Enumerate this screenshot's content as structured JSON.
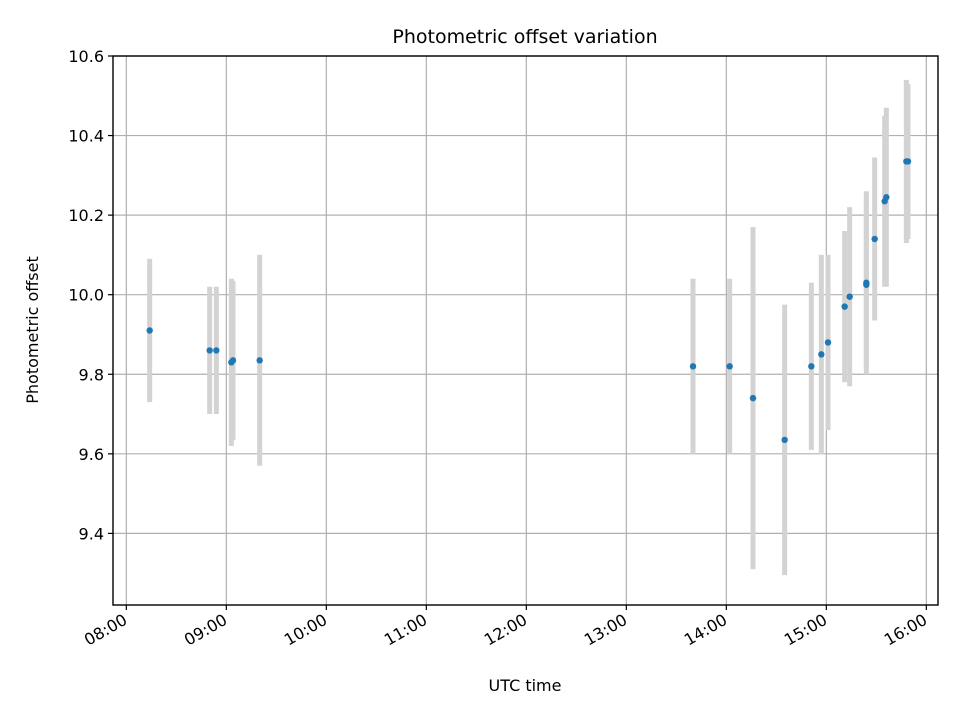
{
  "chart_data": {
    "type": "scatter",
    "title": "Photometric offset variation",
    "xlabel": "UTC time",
    "ylabel": "Photometric offset",
    "grid": true,
    "x_tick_labels": [
      "08:00",
      "09:00",
      "10:00",
      "11:00",
      "12:00",
      "13:00",
      "14:00",
      "15:00",
      "16:00"
    ],
    "y_ticks": [
      9.4,
      9.6,
      9.8,
      10.0,
      10.2,
      10.4,
      10.6
    ],
    "y_tick_labels": [
      "9.4",
      "9.6",
      "9.8",
      "10.0",
      "10.2",
      "10.4",
      "10.6"
    ],
    "xlim": [
      "07:52",
      "16:07"
    ],
    "ylim": [
      9.22,
      10.6
    ],
    "colors": {
      "marker": "#1f77b4",
      "errorbar": "#d3d3d3"
    },
    "points": [
      {
        "x": "08:14",
        "y": 9.91,
        "err": 0.18
      },
      {
        "x": "08:50",
        "y": 9.86,
        "err": 0.16
      },
      {
        "x": "08:54",
        "y": 9.86,
        "err": 0.16
      },
      {
        "x": "09:03",
        "y": 9.83,
        "err": 0.21
      },
      {
        "x": "09:04",
        "y": 9.835,
        "err": 0.2
      },
      {
        "x": "09:20",
        "y": 9.835,
        "err": 0.265
      },
      {
        "x": "13:40",
        "y": 9.82,
        "err": 0.22
      },
      {
        "x": "14:02",
        "y": 9.82,
        "err": 0.22
      },
      {
        "x": "14:16",
        "y": 9.74,
        "err": 0.43
      },
      {
        "x": "14:35",
        "y": 9.635,
        "err": 0.34
      },
      {
        "x": "14:51",
        "y": 9.82,
        "err": 0.21
      },
      {
        "x": "14:57",
        "y": 9.85,
        "err": 0.25
      },
      {
        "x": "15:01",
        "y": 9.88,
        "err": 0.22
      },
      {
        "x": "15:11",
        "y": 9.97,
        "err": 0.19
      },
      {
        "x": "15:14",
        "y": 9.995,
        "err": 0.225
      },
      {
        "x": "15:24",
        "y": 10.03,
        "err": 0.23
      },
      {
        "x": "15:24",
        "y": 10.025,
        "err": 0.21
      },
      {
        "x": "15:29",
        "y": 10.14,
        "err": 0.205
      },
      {
        "x": "15:35",
        "y": 10.235,
        "err": 0.215
      },
      {
        "x": "15:36",
        "y": 10.245,
        "err": 0.225
      },
      {
        "x": "15:48",
        "y": 10.335,
        "err": 0.205
      },
      {
        "x": "15:49",
        "y": 10.335,
        "err": 0.195
      }
    ]
  }
}
